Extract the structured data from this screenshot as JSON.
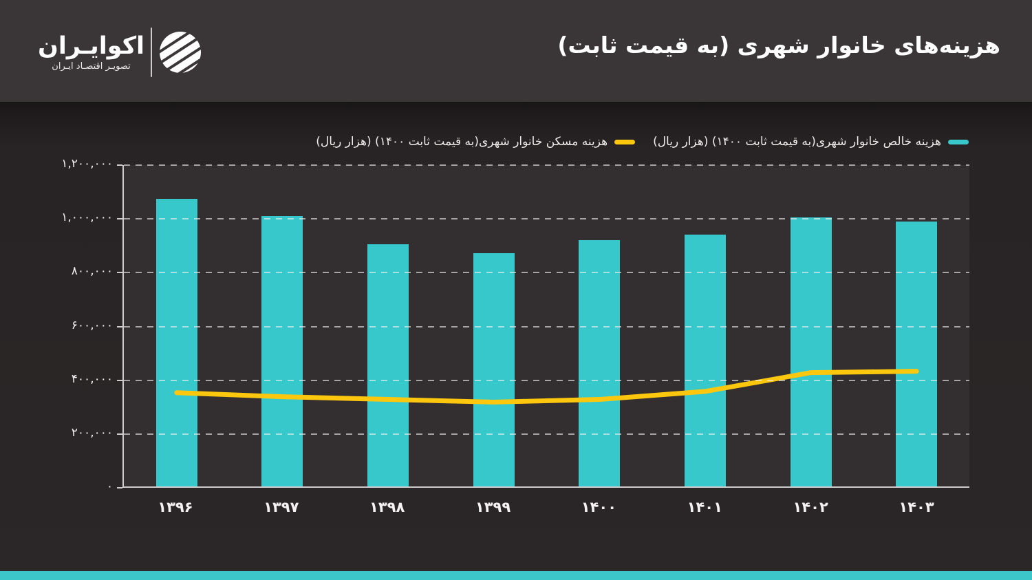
{
  "header": {
    "title": "هزینه‌های خانوار شهری (به قیمت ثابت)",
    "logo": {
      "name": "اکوایـران",
      "tagline": "تصویـر اقتصـاد ایـران"
    }
  },
  "legend": [
    {
      "label": "هزینه خالص خانوار شهری(به قیمت ثابت ۱۴۰۰) (هزار ریال)",
      "color": "#37c8cc",
      "series": "bars"
    },
    {
      "label": "هزینه مسکن خانوار شهری(به قیمت ثابت ۱۴۰۰) (هزار ریال)",
      "color": "#fcc70d",
      "series": "line"
    }
  ],
  "chart_data": {
    "type": "bar",
    "title": "هزینه‌های خانوار شهری (به قیمت ثابت)",
    "categories": [
      "۱۳۹۶",
      "۱۳۹۷",
      "۱۳۹۸",
      "۱۳۹۹",
      "۱۴۰۰",
      "۱۴۰۱",
      "۱۴۰۲",
      "۱۴۰۳"
    ],
    "series": [
      {
        "name": "هزینه خالص خانوار شهری(به قیمت ثابت ۱۴۰۰) (هزار ریال)",
        "type": "bar",
        "color": "#37c8cc",
        "values": [
          1075000,
          1010000,
          905000,
          870000,
          920000,
          940000,
          1005000,
          990000
        ]
      },
      {
        "name": "هزینه مسکن خانوار شهری(به قیمت ثابت ۱۴۰۰) (هزار ریال)",
        "type": "line",
        "color": "#fcc70d",
        "values": [
          350000,
          335000,
          325000,
          315000,
          325000,
          355000,
          425000,
          430000
        ]
      }
    ],
    "xlabel": "",
    "ylabel": "",
    "ylim": [
      0,
      1200000
    ],
    "ytick_step": 200000,
    "ytick_labels": [
      "۰",
      "۲۰۰,۰۰۰",
      "۴۰۰,۰۰۰",
      "۶۰۰,۰۰۰",
      "۸۰۰,۰۰۰",
      "۱,۰۰۰,۰۰۰",
      "۱,۲۰۰,۰۰۰"
    ],
    "grid": "horizontal-dashed",
    "legend_position": "top-right"
  },
  "colors": {
    "teal": "#37c8cc",
    "yellow": "#fcc70d",
    "header_bg": "#3a3637",
    "page_bg": "#2b2728",
    "plot_bg": "#332e2f",
    "footer_strip": "#3cc6ca",
    "grid": "#f0eeee",
    "axis": "#cfcccd"
  }
}
